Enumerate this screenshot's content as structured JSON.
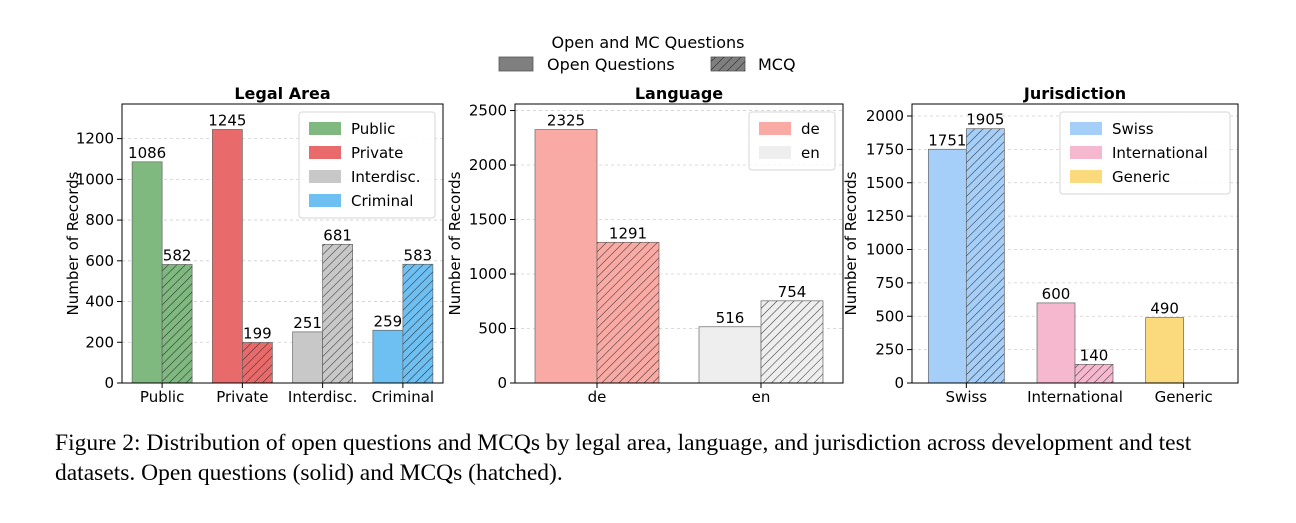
{
  "legend_top": {
    "title": "Open and MC Questions",
    "items": [
      {
        "label": "Open Questions",
        "hatched": false
      },
      {
        "label": "MCQ",
        "hatched": true
      }
    ]
  },
  "chart_data": [
    {
      "type": "bar",
      "title": "Legal Area",
      "ylabel": "Number of Records",
      "xlabel": "",
      "categories": [
        "Public",
        "Private",
        "Interdisc.",
        "Criminal"
      ],
      "ylim": [
        0,
        1370
      ],
      "yticks": [
        0,
        200,
        400,
        600,
        800,
        1000,
        1200
      ],
      "grid": true,
      "legend_position": "top-right",
      "legend": [
        {
          "label": "Public",
          "color": "#80B980"
        },
        {
          "label": "Private",
          "color": "#E96A6A"
        },
        {
          "label": "Interdisc.",
          "color": "#C8C8C8"
        },
        {
          "label": "Criminal",
          "color": "#6EC0F2"
        }
      ],
      "series": [
        {
          "name": "Open Questions",
          "hatched": false,
          "values": [
            1086,
            1245,
            251,
            259
          ]
        },
        {
          "name": "MCQ",
          "hatched": true,
          "values": [
            582,
            199,
            681,
            583
          ]
        }
      ],
      "category_colors": [
        "#80B980",
        "#E96A6A",
        "#C8C8C8",
        "#6EC0F2"
      ]
    },
    {
      "type": "bar",
      "title": "Language",
      "ylabel": "Number of Records",
      "xlabel": "",
      "categories": [
        "de",
        "en"
      ],
      "ylim": [
        0,
        2560
      ],
      "yticks": [
        0,
        500,
        1000,
        1500,
        2000,
        2500
      ],
      "grid": true,
      "legend_position": "top-right",
      "legend": [
        {
          "label": "de",
          "color": "#F9AAA4"
        },
        {
          "label": "en",
          "color": "#EEEEEE"
        }
      ],
      "series": [
        {
          "name": "Open Questions",
          "hatched": false,
          "values": [
            2325,
            516
          ]
        },
        {
          "name": "MCQ",
          "hatched": true,
          "values": [
            1291,
            754
          ]
        }
      ],
      "category_colors": [
        "#F9AAA4",
        "#EEEEEE"
      ]
    },
    {
      "type": "bar",
      "title": "Jurisdiction",
      "ylabel": "Number of Records",
      "xlabel": "",
      "categories": [
        "Swiss",
        "International",
        "Generic"
      ],
      "ylim": [
        0,
        2090
      ],
      "yticks": [
        0,
        250,
        500,
        750,
        1000,
        1250,
        1500,
        1750,
        2000
      ],
      "grid": true,
      "legend_position": "top-right",
      "legend": [
        {
          "label": "Swiss",
          "color": "#A5CFF8"
        },
        {
          "label": "International",
          "color": "#F5B8CE"
        },
        {
          "label": "Generic",
          "color": "#FBDA7E"
        }
      ],
      "series": [
        {
          "name": "Open Questions",
          "hatched": false,
          "values": [
            1751,
            600,
            490
          ]
        },
        {
          "name": "MCQ",
          "hatched": true,
          "values": [
            1905,
            140,
            null
          ]
        }
      ],
      "category_colors": [
        "#A5CFF8",
        "#F5B8CE",
        "#FBDA7E"
      ]
    }
  ],
  "caption": "Figure 2: Distribution of open questions and MCQs by legal area, language, and jurisdiction across development and test datasets. Open questions (solid) and MCQs (hatched)."
}
